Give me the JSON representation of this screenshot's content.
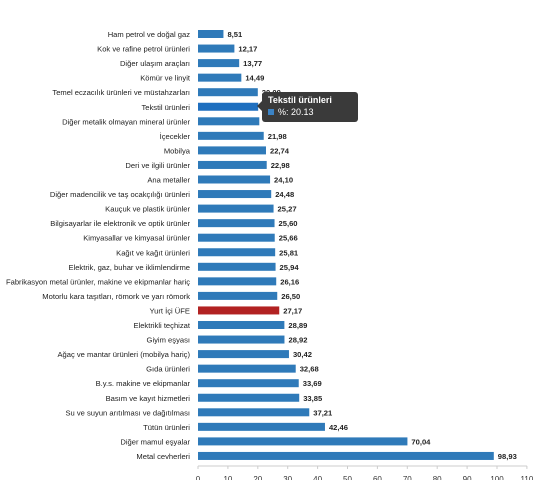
{
  "chart_data": {
    "type": "bar",
    "orientation": "horizontal",
    "title": "",
    "xlabel": "",
    "ylabel": "",
    "xlim": [
      0,
      110
    ],
    "x_ticks": [
      0,
      10,
      20,
      30,
      40,
      50,
      60,
      70,
      80,
      90,
      100,
      110
    ],
    "grid": false,
    "legend": "none",
    "colors": {
      "default": "#2f7ab9",
      "highlight": "#b22222",
      "hover": "#1f6fbf"
    },
    "categories": [
      "Ham petrol ve doğal gaz",
      "Kok ve rafine petrol ürünleri",
      "Diğer ulaşım araçları",
      "Kömür ve linyit",
      "Temel eczacılık ürünleri ve müstahzarları",
      "Tekstil ürünleri",
      "Diğer metalik olmayan mineral ürünler",
      "İçecekler",
      "Mobilya",
      "Deri ve ilgili ürünler",
      "Ana metaller",
      "Diğer madencilik ve taş ocakçılığı ürünleri",
      "Kauçuk ve plastik ürünler",
      "Bilgisayarlar ile elektronik ve optik ürünler",
      "Kimyasallar ve kimyasal ürünler",
      "Kağıt ve kağıt ürünleri",
      "Elektrik, gaz, buhar ve iklimlendirme",
      "Fabrikasyon metal ürünler, makine ve ekipmanlar hariç",
      "Motorlu kara taşıtları, römork ve yarı römork",
      "Yurt İçi ÜFE",
      "Elektrikli teçhizat",
      "Giyim eşyası",
      "Ağaç ve mantar ürünleri (mobilya hariç)",
      "Gıda ürünleri",
      "B.y.s. makine ve ekipmanlar",
      "Basım ve kayıt hizmetleri",
      "Su ve suyun arıtılması ve dağıtılması",
      "Tütün ürünleri",
      "Diğer mamul eşyalar",
      "Metal cevherleri"
    ],
    "values": [
      8.51,
      12.17,
      13.77,
      14.49,
      20.0,
      20.13,
      20.5,
      21.98,
      22.74,
      22.98,
      24.1,
      24.48,
      25.27,
      25.6,
      25.66,
      25.81,
      25.94,
      26.16,
      26.5,
      27.17,
      28.89,
      28.92,
      30.42,
      32.68,
      33.69,
      33.85,
      37.21,
      42.46,
      70.04,
      98.93
    ],
    "value_labels": [
      "8,51",
      "12,17",
      "13,77",
      "14,49",
      "20,00",
      "",
      "",
      "21,98",
      "22,74",
      "22,98",
      "24,10",
      "24,48",
      "25,27",
      "25,60",
      "25,66",
      "25,81",
      "25,94",
      "26,16",
      "26,50",
      "27,17",
      "28,89",
      "28,92",
      "30,42",
      "32,68",
      "33,69",
      "33,85",
      "37,21",
      "42,46",
      "70,04",
      "98,93"
    ],
    "highlight_index": 19,
    "hover_index": 5
  },
  "tooltip": {
    "title": "Tekstil ürünleri",
    "value_text": "%: 20.13"
  }
}
